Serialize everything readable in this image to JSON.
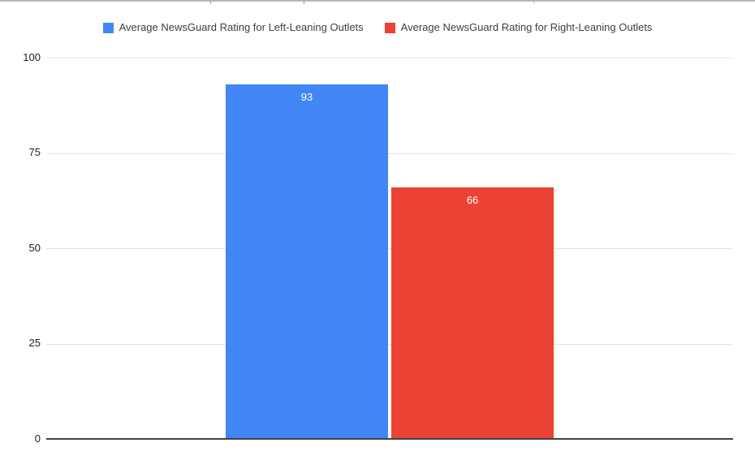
{
  "chart_data": {
    "type": "bar",
    "categories": [
      ""
    ],
    "series": [
      {
        "name": "Average NewsGuard Rating for Left-Leaning Outlets",
        "values": [
          93
        ],
        "color": "#4285f4"
      },
      {
        "name": "Average NewsGuard Rating for Right-Leaning Outlets",
        "values": [
          66
        ],
        "color": "#ea4335"
      }
    ],
    "title": "",
    "xlabel": "",
    "ylabel": "",
    "ylim": [
      0,
      100
    ],
    "yticks": [
      0,
      25,
      50,
      75,
      100
    ],
    "grid": true,
    "legend_position": "top",
    "bar_labels": [
      "93",
      "66"
    ]
  },
  "legend": {
    "items": [
      {
        "label": "Average NewsGuard Rating for Left-Leaning Outlets",
        "color": "#4285f4"
      },
      {
        "label": "Average NewsGuard Rating for Right-Leaning Outlets",
        "color": "#ea4335"
      }
    ]
  },
  "axes": {
    "y_tick_labels_top_to_bottom": [
      "100",
      "75",
      "50",
      "25",
      "0"
    ]
  },
  "colors": {
    "bar_blue": "#4285f4",
    "bar_red": "#ea4335",
    "gridline": "#e3e3e3",
    "baseline": "#424242",
    "legend_text": "#3c4043",
    "axis_text": "#202124",
    "background": "#ffffff",
    "top_border": "#b7b7b7"
  }
}
